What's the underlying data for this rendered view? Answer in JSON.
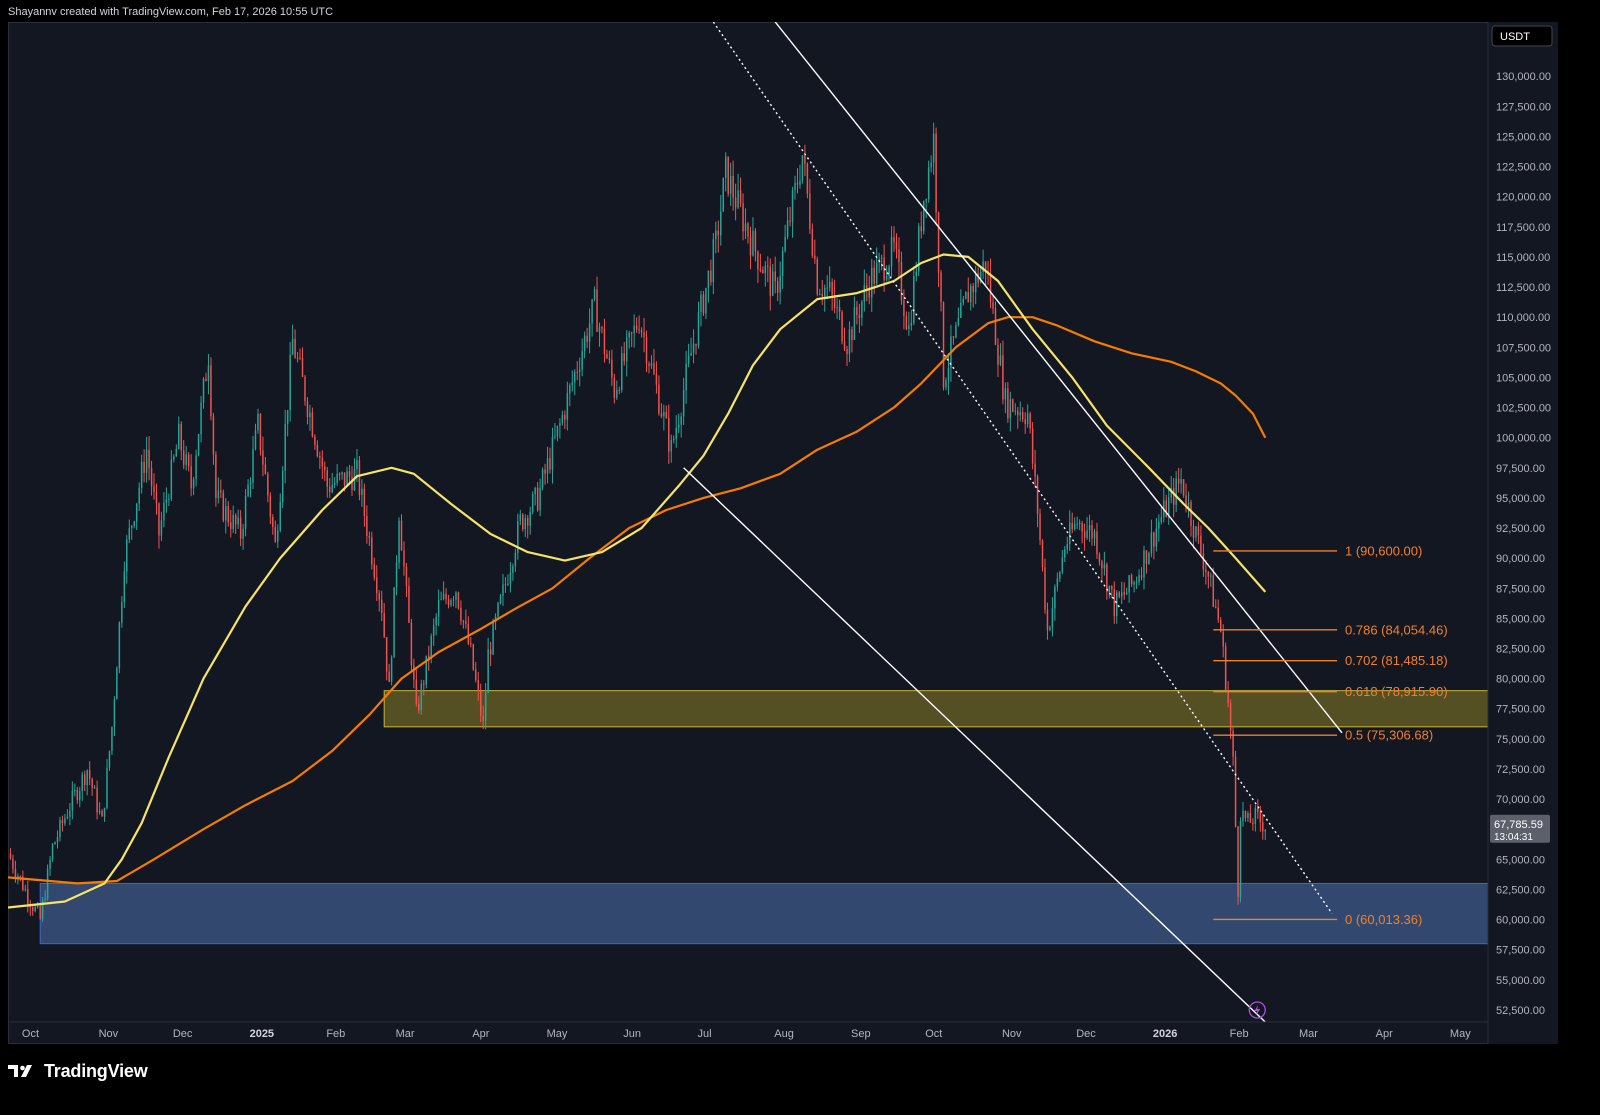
{
  "header": {
    "text": "Shayannv created with TradingView.com, Feb 17, 2026 10:55 UTC"
  },
  "footer": {
    "brand": "TradingView"
  },
  "colors": {
    "background": "#131722",
    "up": "#26a69a",
    "down": "#ef5350",
    "ma_fast": "#f5e46a",
    "ma_slow": "#f57c00",
    "fib": "#f0802e",
    "zone_upper": "#6b6424",
    "zone_lower": "#3d5a8a",
    "price_tag": "#5d606b"
  },
  "chart_data": {
    "type": "candlestick",
    "title": "",
    "currency": "USDT",
    "ylim": [
      51500,
      134500
    ],
    "y_ticks": [
      52500,
      55000,
      57500,
      60000,
      62500,
      65000,
      67500,
      70000,
      72500,
      75000,
      77500,
      80000,
      82500,
      85000,
      87500,
      90000,
      92500,
      95000,
      97500,
      100000,
      102500,
      105000,
      107500,
      110000,
      112500,
      115000,
      117500,
      120000,
      122500,
      125000,
      127500,
      130000
    ],
    "y_tick_labels": [
      "52,500.00",
      "55,000.00",
      "57,500.00",
      "60,000.00",
      "62,500.00",
      "65,000.00",
      "67,500.00",
      "70,000.00",
      "72,500.00",
      "75,000.00",
      "77,500.00",
      "80,000.00",
      "82,500.00",
      "85,000.00",
      "87,500.00",
      "90,000.00",
      "92,500.00",
      "95,000.00",
      "97,500.00",
      "100,000.00",
      "102,500.00",
      "105,000.00",
      "107,500.00",
      "110,000.00",
      "112,500.00",
      "115,000.00",
      "117,500.00",
      "120,000.00",
      "122,500.00",
      "125,000.00",
      "127,500.00",
      "130,000.00"
    ],
    "xlim": [
      "2024-09-27",
      "2026-05-18"
    ],
    "x_ticks": [
      {
        "date": "2024-10-01",
        "label": "Oct",
        "bold": false
      },
      {
        "date": "2024-11-01",
        "label": "Nov",
        "bold": false
      },
      {
        "date": "2024-12-01",
        "label": "Dec",
        "bold": false
      },
      {
        "date": "2025-01-01",
        "label": "2025",
        "bold": true
      },
      {
        "date": "2025-02-01",
        "label": "Feb",
        "bold": false
      },
      {
        "date": "2025-03-01",
        "label": "Mar",
        "bold": false
      },
      {
        "date": "2025-04-01",
        "label": "Apr",
        "bold": false
      },
      {
        "date": "2025-05-01",
        "label": "May",
        "bold": false
      },
      {
        "date": "2025-06-01",
        "label": "Jun",
        "bold": false
      },
      {
        "date": "2025-07-01",
        "label": "Jul",
        "bold": false
      },
      {
        "date": "2025-08-01",
        "label": "Aug",
        "bold": false
      },
      {
        "date": "2025-09-01",
        "label": "Sep",
        "bold": false
      },
      {
        "date": "2025-10-01",
        "label": "Oct",
        "bold": false
      },
      {
        "date": "2025-11-01",
        "label": "Nov",
        "bold": false
      },
      {
        "date": "2025-12-01",
        "label": "Dec",
        "bold": false
      },
      {
        "date": "2026-01-01",
        "label": "2026",
        "bold": true
      },
      {
        "date": "2026-02-01",
        "label": "Feb",
        "bold": false
      },
      {
        "date": "2026-03-01",
        "label": "Mar",
        "bold": false
      },
      {
        "date": "2026-04-01",
        "label": "Apr",
        "bold": false
      },
      {
        "date": "2026-05-01",
        "label": "May",
        "bold": false
      }
    ],
    "price_path": [
      [
        "2024-09-27",
        65500
      ],
      [
        "2024-10-05",
        62000
      ],
      [
        "2024-10-10",
        60000
      ],
      [
        "2024-10-15",
        66000
      ],
      [
        "2024-10-21",
        69000
      ],
      [
        "2024-10-29",
        72500
      ],
      [
        "2024-11-04",
        68000
      ],
      [
        "2024-11-08",
        76000
      ],
      [
        "2024-11-13",
        90000
      ],
      [
        "2024-11-22",
        99000
      ],
      [
        "2024-11-27",
        92000
      ],
      [
        "2024-12-05",
        100000
      ],
      [
        "2024-12-10",
        96000
      ],
      [
        "2024-12-17",
        107000
      ],
      [
        "2024-12-20",
        95000
      ],
      [
        "2024-12-30",
        92000
      ],
      [
        "2025-01-06",
        101000
      ],
      [
        "2025-01-13",
        91000
      ],
      [
        "2025-01-20",
        108000
      ],
      [
        "2025-01-27",
        102000
      ],
      [
        "2025-02-03",
        96000
      ],
      [
        "2025-02-15",
        97000
      ],
      [
        "2025-02-25",
        86000
      ],
      [
        "2025-02-28",
        79000
      ],
      [
        "2025-03-04",
        94000
      ],
      [
        "2025-03-11",
        77000
      ],
      [
        "2025-03-20",
        86000
      ],
      [
        "2025-03-27",
        87500
      ],
      [
        "2025-04-02",
        82000
      ],
      [
        "2025-04-07",
        76000
      ],
      [
        "2025-04-09",
        82000
      ],
      [
        "2025-04-22",
        93000
      ],
      [
        "2025-04-29",
        95000
      ],
      [
        "2025-05-08",
        101000
      ],
      [
        "2025-05-22",
        111000
      ],
      [
        "2025-05-30",
        104000
      ],
      [
        "2025-06-09",
        110000
      ],
      [
        "2025-06-22",
        99000
      ],
      [
        "2025-06-30",
        107000
      ],
      [
        "2025-07-10",
        116000
      ],
      [
        "2025-07-14",
        122000
      ],
      [
        "2025-07-25",
        116000
      ],
      [
        "2025-08-03",
        112000
      ],
      [
        "2025-08-14",
        123500
      ],
      [
        "2025-08-20",
        113000
      ],
      [
        "2025-08-25",
        112000
      ],
      [
        "2025-09-01",
        108000
      ],
      [
        "2025-09-10",
        113000
      ],
      [
        "2025-09-20",
        115500
      ],
      [
        "2025-09-26",
        109000
      ],
      [
        "2025-10-02",
        120000
      ],
      [
        "2025-10-06",
        124800
      ],
      [
        "2025-10-10",
        105000
      ],
      [
        "2025-10-20",
        112000
      ],
      [
        "2025-10-27",
        114500
      ],
      [
        "2025-11-04",
        103000
      ],
      [
        "2025-11-13",
        102000
      ],
      [
        "2025-11-17",
        94000
      ],
      [
        "2025-11-21",
        84000
      ],
      [
        "2025-11-28",
        91000
      ],
      [
        "2025-12-03",
        93000
      ],
      [
        "2025-12-10",
        92000
      ],
      [
        "2025-12-18",
        86000
      ],
      [
        "2025-12-26",
        88000
      ],
      [
        "2026-01-05",
        93000
      ],
      [
        "2026-01-14",
        96500
      ],
      [
        "2026-01-20",
        92000
      ],
      [
        "2026-01-25",
        88500
      ],
      [
        "2026-01-30",
        84000
      ],
      [
        "2026-02-02",
        78000
      ],
      [
        "2026-02-04",
        73000
      ],
      [
        "2026-02-06",
        62500
      ],
      [
        "2026-02-07",
        69000
      ],
      [
        "2026-02-10",
        68000
      ],
      [
        "2026-02-13",
        68500
      ],
      [
        "2026-02-17",
        67785.59
      ]
    ],
    "ma_fast": [
      [
        "2024-09-27",
        61000
      ],
      [
        "2024-10-20",
        61500
      ],
      [
        "2024-11-05",
        63000
      ],
      [
        "2024-11-12",
        65000
      ],
      [
        "2024-11-20",
        68000
      ],
      [
        "2024-12-01",
        73500
      ],
      [
        "2024-12-15",
        80000
      ],
      [
        "2025-01-01",
        86000
      ],
      [
        "2025-01-15",
        90000
      ],
      [
        "2025-02-01",
        94000
      ],
      [
        "2025-02-15",
        96800
      ],
      [
        "2025-03-01",
        97500
      ],
      [
        "2025-03-10",
        97000
      ],
      [
        "2025-03-25",
        94500
      ],
      [
        "2025-04-10",
        92000
      ],
      [
        "2025-04-25",
        90500
      ],
      [
        "2025-05-10",
        89800
      ],
      [
        "2025-05-25",
        90500
      ],
      [
        "2025-06-10",
        92500
      ],
      [
        "2025-06-25",
        96000
      ],
      [
        "2025-07-05",
        98500
      ],
      [
        "2025-07-15",
        102000
      ],
      [
        "2025-07-25",
        106000
      ],
      [
        "2025-08-05",
        109000
      ],
      [
        "2025-08-20",
        111500
      ],
      [
        "2025-09-05",
        112000
      ],
      [
        "2025-09-20",
        113000
      ],
      [
        "2025-10-01",
        114500
      ],
      [
        "2025-10-10",
        115200
      ],
      [
        "2025-10-20",
        115000
      ],
      [
        "2025-11-01",
        113000
      ],
      [
        "2025-11-15",
        109000
      ],
      [
        "2025-12-01",
        105000
      ],
      [
        "2025-12-15",
        101000
      ],
      [
        "2026-01-01",
        97500
      ],
      [
        "2026-01-15",
        94500
      ],
      [
        "2026-01-25",
        92500
      ],
      [
        "2026-02-05",
        90000
      ],
      [
        "2026-02-17",
        87200
      ]
    ],
    "ma_slow": [
      [
        "2024-09-27",
        63500
      ],
      [
        "2024-10-25",
        63000
      ],
      [
        "2024-11-10",
        63200
      ],
      [
        "2024-11-25",
        65000
      ],
      [
        "2024-12-15",
        67500
      ],
      [
        "2025-01-01",
        69500
      ],
      [
        "2025-01-20",
        71500
      ],
      [
        "2025-02-05",
        74000
      ],
      [
        "2025-02-20",
        77000
      ],
      [
        "2025-03-05",
        80000
      ],
      [
        "2025-03-20",
        82200
      ],
      [
        "2025-04-05",
        84000
      ],
      [
        "2025-04-20",
        85800
      ],
      [
        "2025-05-05",
        87500
      ],
      [
        "2025-05-20",
        90000
      ],
      [
        "2025-06-05",
        92500
      ],
      [
        "2025-06-20",
        94000
      ],
      [
        "2025-07-05",
        95000
      ],
      [
        "2025-07-20",
        95800
      ],
      [
        "2025-08-05",
        97000
      ],
      [
        "2025-08-20",
        99000
      ],
      [
        "2025-09-05",
        100500
      ],
      [
        "2025-09-20",
        102500
      ],
      [
        "2025-10-01",
        104500
      ],
      [
        "2025-10-15",
        107500
      ],
      [
        "2025-10-28",
        109500
      ],
      [
        "2025-11-05",
        110000
      ],
      [
        "2025-11-15",
        110000
      ],
      [
        "2025-11-25",
        109300
      ],
      [
        "2025-12-10",
        108000
      ],
      [
        "2025-12-25",
        107000
      ],
      [
        "2026-01-10",
        106300
      ],
      [
        "2026-01-20",
        105500
      ],
      [
        "2026-01-30",
        104500
      ],
      [
        "2026-02-05",
        103500
      ],
      [
        "2026-02-12",
        102000
      ],
      [
        "2026-02-17",
        100000
      ]
    ],
    "channel_upper_line": [
      [
        "2025-08-03",
        134500
      ],
      [
        "2026-03-20",
        75500
      ]
    ],
    "channel_lower_line": [
      [
        "2025-06-27",
        97500
      ],
      [
        "2026-02-17",
        51500
      ]
    ],
    "channel_mid_line": [
      [
        "2025-07-09",
        134500
      ],
      [
        "2026-03-16",
        60500
      ]
    ],
    "zones": [
      {
        "name": "upper-demand-zone",
        "y_top": 79000,
        "y_bottom": 76000,
        "x_start": "2025-02-26",
        "x_end": "2026-05-18"
      },
      {
        "name": "lower-demand-zone",
        "y_top": 63000,
        "y_bottom": 58000,
        "x_start": "2024-10-10",
        "x_end": "2026-05-18"
      }
    ],
    "fib_levels": [
      {
        "ratio": "1",
        "price": 90600,
        "label": "1 (90,600.00)"
      },
      {
        "ratio": "0.786",
        "price": 84054.46,
        "label": "0.786 (84,054.46)"
      },
      {
        "ratio": "0.702",
        "price": 81485.18,
        "label": "0.702 (81,485.18)"
      },
      {
        "ratio": "0.618",
        "price": 78915.9,
        "label": "0.618 (78,915.90)"
      },
      {
        "ratio": "0.5",
        "price": 75306.68,
        "label": "0.5 (75,306.68)"
      },
      {
        "ratio": "0",
        "price": 60013.36,
        "label": "0 (60,013.36)"
      }
    ],
    "fib_x_range": [
      "2026-01-27",
      "2026-03-18"
    ],
    "current_price": {
      "value": 67785.59,
      "label": "67,785.59",
      "countdown": "13:04:31"
    }
  }
}
